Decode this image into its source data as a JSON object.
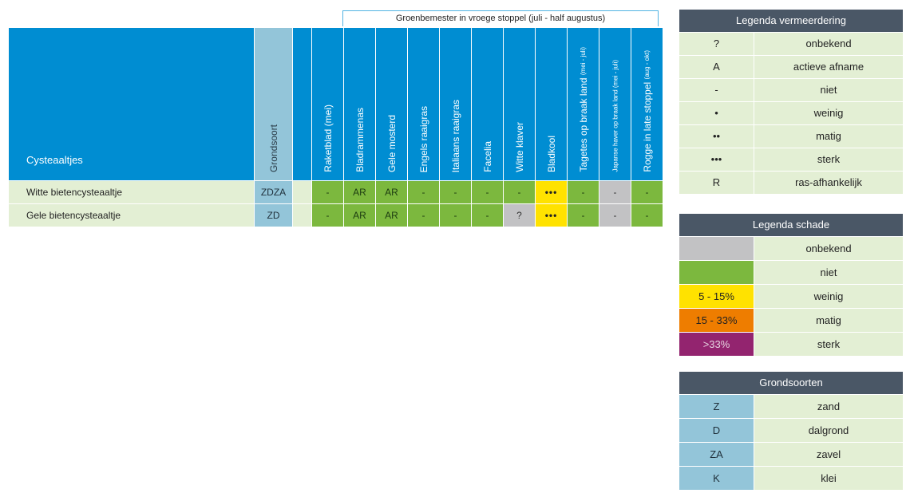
{
  "group_header": "Groenbemester in vroege stoppel (juli - half augustus)",
  "table": {
    "title": "Cysteaaltjes",
    "soil_header": "Grondsoort",
    "columns": [
      {
        "label": "Raketblad (mei)"
      },
      {
        "label": "Bladrammenas"
      },
      {
        "label": "Gele mosterd"
      },
      {
        "label": "Engels raaigras"
      },
      {
        "label": "Italiaans raaigras"
      },
      {
        "label": "Facelia"
      },
      {
        "label": "Witte klaver"
      },
      {
        "label": "Bladkool"
      },
      {
        "label": "Tagetes op braak land",
        "suffix": "(mei - juli)"
      },
      {
        "label": "Japanse haver op braak land (mei - juli)"
      },
      {
        "label": "Rogge in late stoppel",
        "suffix": "(aug - okt)"
      }
    ],
    "rows": [
      {
        "name": "Witte bietencysteaaltje",
        "soil": "ZDZA",
        "values": [
          "-",
          "AR",
          "AR",
          "-",
          "-",
          "-",
          "-",
          "•••",
          "-",
          "-",
          "-"
        ]
      },
      {
        "name": "Gele bietencysteaaltje",
        "soil": "ZD",
        "values": [
          "-",
          "AR",
          "AR",
          "-",
          "-",
          "-",
          "?",
          "•••",
          "-",
          "-",
          "-"
        ]
      }
    ]
  },
  "legend_vermeerdering": {
    "title": "Legenda vermeerdering",
    "items": [
      {
        "symbol": "?",
        "label": "onbekend"
      },
      {
        "symbol": "A",
        "label": "actieve afname"
      },
      {
        "symbol": "-",
        "label": "niet"
      },
      {
        "symbol": "•",
        "label": "weinig"
      },
      {
        "symbol": "••",
        "label": "matig"
      },
      {
        "symbol": "•••",
        "label": "sterk"
      },
      {
        "symbol": "R",
        "label": "ras-afhankelijk"
      }
    ]
  },
  "legend_schade": {
    "title": "Legenda schade",
    "items": [
      {
        "swatch": "",
        "label": "onbekend"
      },
      {
        "swatch": "",
        "label": "niet"
      },
      {
        "swatch": "5 - 15%",
        "label": "weinig"
      },
      {
        "swatch": "15 - 33%",
        "label": "matig"
      },
      {
        "swatch": ">33%",
        "label": "sterk"
      }
    ]
  },
  "legend_grondsoorten": {
    "title": "Grondsoorten",
    "items": [
      {
        "code": "Z",
        "label": "zand"
      },
      {
        "code": "D",
        "label": "dalgrond"
      },
      {
        "code": "ZA",
        "label": "zavel"
      },
      {
        "code": "K",
        "label": "klei"
      }
    ]
  },
  "colors": {
    "header_blue": "#008dd2",
    "soil_blue": "#93c5d9",
    "green": "#7cb83e",
    "light_green": "#e3efd4",
    "gray": "#c2c2c4",
    "yellow": "#ffe200",
    "orange": "#ee7d00",
    "purple": "#93246f",
    "legend_header": "#4a5766"
  }
}
